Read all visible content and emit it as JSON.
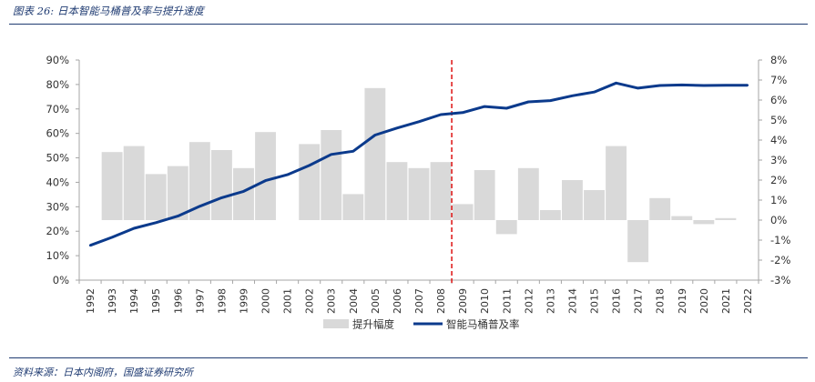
{
  "figure_title": "图表 26:  日本智能马桶普及率与提升速度",
  "source": "资料来源：日本内阁府，国盛证券研究所",
  "colors": {
    "bar": "#d9d9d9",
    "line": "#0b3a8c",
    "divider": "#e02020",
    "accent": "#1f3b72"
  },
  "chart_data": {
    "type": "bar+line",
    "categories": [
      "1992",
      "1993",
      "1994",
      "1995",
      "1996",
      "1997",
      "1998",
      "1999",
      "2000",
      "2001",
      "2002",
      "2003",
      "2004",
      "2005",
      "2006",
      "2007",
      "2008",
      "2009",
      "2010",
      "2011",
      "2012",
      "2013",
      "2014",
      "2015",
      "2016",
      "2017",
      "2018",
      "2019",
      "2020",
      "2021",
      "2022"
    ],
    "series": [
      {
        "name": "提升幅度",
        "type": "bar",
        "axis": "right",
        "values": [
          null,
          3.4,
          3.7,
          2.3,
          2.7,
          3.9,
          3.5,
          2.6,
          4.4,
          null,
          3.8,
          4.5,
          1.3,
          6.6,
          2.9,
          2.6,
          2.9,
          0.8,
          2.5,
          -0.7,
          2.6,
          0.5,
          2.0,
          1.5,
          3.7,
          -2.1,
          1.1,
          0.2,
          -0.2,
          0.1,
          null
        ]
      },
      {
        "name": "智能马桶普及率",
        "type": "line",
        "axis": "left",
        "values": [
          14.2,
          17.5,
          21.2,
          23.5,
          26.2,
          30.2,
          33.7,
          36.3,
          40.7,
          43.1,
          46.9,
          51.4,
          52.7,
          59.3,
          62.2,
          64.8,
          67.7,
          68.5,
          71.0,
          70.3,
          72.9,
          73.4,
          75.4,
          76.9,
          80.6,
          78.5,
          79.6,
          79.8,
          79.6,
          79.7,
          79.7
        ]
      }
    ],
    "y_left": {
      "min": 0,
      "max": 90,
      "ticks": [
        "0%",
        "10%",
        "20%",
        "30%",
        "40%",
        "50%",
        "60%",
        "70%",
        "80%",
        "90%"
      ]
    },
    "y_right": {
      "min": -3,
      "max": 8,
      "ticks": [
        "-3%",
        "-2%",
        "-1%",
        "0%",
        "1%",
        "2%",
        "3%",
        "4%",
        "5%",
        "6%",
        "7%",
        "8%"
      ]
    },
    "divider_after": "2008",
    "legend": [
      "提升幅度",
      "智能马桶普及率"
    ],
    "legend_position": "bottom",
    "grid": false
  }
}
